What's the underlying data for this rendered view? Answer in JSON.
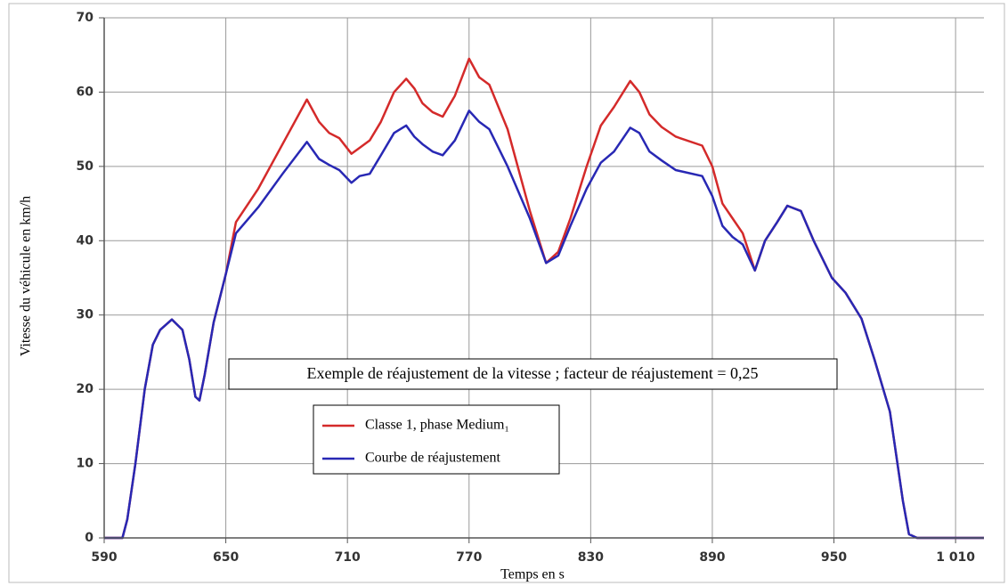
{
  "chart_data": {
    "type": "line",
    "xlabel": "Temps en s",
    "ylabel": "Vitesse du véhicule en km/h",
    "annotation": "Exemple de réajustement de la vitesse ; facteur de réajustement = 0,25",
    "x": [
      590,
      599,
      601.4,
      605.4,
      610,
      614,
      617.6,
      623.4,
      628.6,
      632,
      635,
      637,
      639.6,
      644,
      650,
      655,
      666,
      678,
      690,
      696,
      701,
      706,
      712,
      716,
      721,
      726.5,
      733,
      739,
      743,
      747,
      752,
      757,
      763,
      770,
      775,
      780,
      789,
      800,
      808,
      814,
      820,
      828,
      835,
      841.5,
      849.5,
      854,
      859,
      865,
      872,
      885,
      890,
      895,
      900,
      905,
      911,
      916,
      922,
      927,
      933.7,
      940,
      949,
      955.7,
      963.6,
      970,
      977.6,
      984,
      987,
      991,
      1024
    ],
    "series": [
      {
        "name": "Classe 1, phase Medium₁",
        "color": "#d42a2a",
        "values": [
          0,
          0,
          2.5,
          10,
          20,
          26,
          28,
          29.4,
          28,
          24,
          19,
          18.5,
          22,
          29,
          35.5,
          42.5,
          47,
          53,
          59,
          56,
          54.5,
          53.8,
          51.7,
          52.5,
          53.5,
          56,
          60,
          61.8,
          60.5,
          58.5,
          57.3,
          56.7,
          59.5,
          64.5,
          62,
          61,
          55,
          44,
          37,
          38.5,
          43,
          50,
          55.5,
          58,
          61.5,
          60,
          57,
          55.3,
          54,
          52.8,
          50,
          45,
          43,
          41,
          36,
          40,
          42.5,
          44.7,
          44,
          40,
          35,
          33,
          29.5,
          24,
          17,
          5,
          0.5,
          0,
          0
        ]
      },
      {
        "name": "Courbe de réajustement",
        "color": "#2828b4",
        "values": [
          0,
          0,
          2.5,
          10,
          20,
          26,
          28,
          29.4,
          28,
          24,
          19,
          18.5,
          22,
          29,
          35.5,
          41,
          44.5,
          49,
          53.3,
          51,
          50.2,
          49.5,
          47.8,
          48.7,
          49,
          51.5,
          54.5,
          55.5,
          54,
          53,
          52,
          51.5,
          53.5,
          57.5,
          56,
          55,
          50,
          43,
          37,
          38,
          42,
          47,
          50.5,
          52,
          55.2,
          54.5,
          52,
          50.8,
          49.5,
          48.7,
          46,
          42,
          40.5,
          39.5,
          36,
          40,
          42.5,
          44.7,
          44,
          40,
          35,
          33,
          29.5,
          24,
          17,
          5,
          0.5,
          0,
          0
        ]
      }
    ],
    "xlim": [
      590,
      1024
    ],
    "xticks": [
      590,
      650,
      710,
      770,
      830,
      890,
      950,
      {
        "value": 1010,
        "label": "1 010"
      }
    ],
    "ylim": [
      0,
      70
    ],
    "yticks": [
      0,
      10,
      20,
      30,
      40,
      50,
      60,
      70
    ],
    "grid": true
  }
}
